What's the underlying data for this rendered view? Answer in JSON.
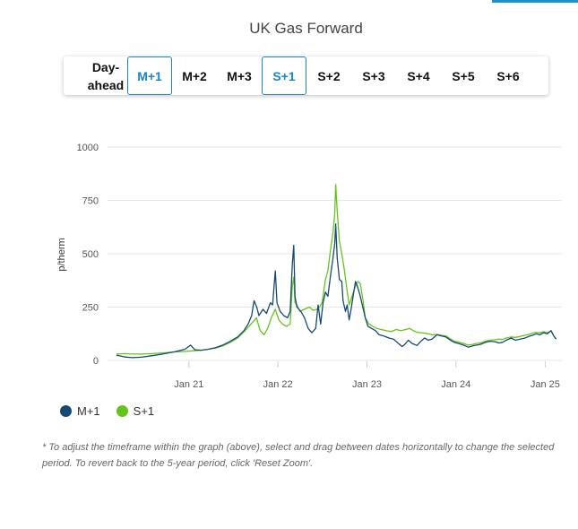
{
  "header": {
    "title": "UK Gas Forward"
  },
  "tabs": [
    {
      "label": "Day-ahead",
      "active": false
    },
    {
      "label": "M+1",
      "active": true
    },
    {
      "label": "M+2",
      "active": false
    },
    {
      "label": "M+3",
      "active": false
    },
    {
      "label": "S+1",
      "active": true
    },
    {
      "label": "S+2",
      "active": false
    },
    {
      "label": "S+3",
      "active": false
    },
    {
      "label": "S+4",
      "active": false
    },
    {
      "label": "S+5",
      "active": false
    },
    {
      "label": "S+6",
      "active": false
    }
  ],
  "chart_data": {
    "type": "line",
    "xlabel": "",
    "ylabel": "p/therm",
    "ylim": [
      0,
      1000
    ],
    "yticks": [
      "0",
      "250",
      "500",
      "750",
      "1000"
    ],
    "xticks": [
      "Jan 21",
      "Jan 22",
      "Jan 23",
      "Jan 24",
      "Jan 25"
    ],
    "grid": true,
    "legend": "bottom-left",
    "series": [
      {
        "name": "M+1",
        "color": "#174a72",
        "points": [
          [
            "2020-03-10",
            25
          ],
          [
            "2020-04-15",
            16
          ],
          [
            "2020-05-15",
            13
          ],
          [
            "2020-06-20",
            15
          ],
          [
            "2020-08-01",
            22
          ],
          [
            "2020-09-15",
            30
          ],
          [
            "2020-11-01",
            40
          ],
          [
            "2020-12-15",
            52
          ],
          [
            "2021-01-08",
            72
          ],
          [
            "2021-01-25",
            50
          ],
          [
            "2021-02-20",
            48
          ],
          [
            "2021-03-20",
            52
          ],
          [
            "2021-04-20",
            60
          ],
          [
            "2021-05-20",
            72
          ],
          [
            "2021-06-20",
            90
          ],
          [
            "2021-07-20",
            110
          ],
          [
            "2021-08-15",
            140
          ],
          [
            "2021-09-01",
            170
          ],
          [
            "2021-09-15",
            210
          ],
          [
            "2021-09-25",
            280
          ],
          [
            "2021-10-06",
            250
          ],
          [
            "2021-10-15",
            210
          ],
          [
            "2021-11-01",
            240
          ],
          [
            "2021-11-15",
            220
          ],
          [
            "2021-12-01",
            270
          ],
          [
            "2021-12-10",
            260
          ],
          [
            "2021-12-21",
            420
          ],
          [
            "2021-12-28",
            270
          ],
          [
            "2022-01-10",
            230
          ],
          [
            "2022-01-25",
            210
          ],
          [
            "2022-02-10",
            200
          ],
          [
            "2022-02-20",
            230
          ],
          [
            "2022-03-01",
            450
          ],
          [
            "2022-03-07",
            540
          ],
          [
            "2022-03-12",
            300
          ],
          [
            "2022-03-20",
            250
          ],
          [
            "2022-04-05",
            230
          ],
          [
            "2022-04-20",
            200
          ],
          [
            "2022-05-05",
            150
          ],
          [
            "2022-05-20",
            130
          ],
          [
            "2022-06-05",
            150
          ],
          [
            "2022-06-15",
            260
          ],
          [
            "2022-06-25",
            170
          ],
          [
            "2022-07-05",
            270
          ],
          [
            "2022-07-15",
            320
          ],
          [
            "2022-07-25",
            300
          ],
          [
            "2022-08-05",
            400
          ],
          [
            "2022-08-15",
            480
          ],
          [
            "2022-08-22",
            550
          ],
          [
            "2022-08-26",
            640
          ],
          [
            "2022-09-01",
            480
          ],
          [
            "2022-09-10",
            380
          ],
          [
            "2022-09-20",
            370
          ],
          [
            "2022-09-25",
            280
          ],
          [
            "2022-10-05",
            230
          ],
          [
            "2022-10-12",
            260
          ],
          [
            "2022-10-20",
            190
          ],
          [
            "2022-10-28",
            240
          ],
          [
            "2022-11-05",
            300
          ],
          [
            "2022-11-15",
            370
          ],
          [
            "2022-11-25",
            340
          ],
          [
            "2022-12-05",
            300
          ],
          [
            "2022-12-15",
            250
          ],
          [
            "2022-12-25",
            200
          ],
          [
            "2023-01-05",
            160
          ],
          [
            "2023-01-20",
            150
          ],
          [
            "2023-02-05",
            140
          ],
          [
            "2023-02-20",
            120
          ],
          [
            "2023-03-10",
            115
          ],
          [
            "2023-04-01",
            105
          ],
          [
            "2023-04-20",
            100
          ],
          [
            "2023-05-10",
            80
          ],
          [
            "2023-05-25",
            65
          ],
          [
            "2023-06-05",
            75
          ],
          [
            "2023-06-20",
            95
          ],
          [
            "2023-07-05",
            80
          ],
          [
            "2023-07-25",
            70
          ],
          [
            "2023-08-10",
            90
          ],
          [
            "2023-08-25",
            105
          ],
          [
            "2023-09-10",
            95
          ],
          [
            "2023-09-25",
            100
          ],
          [
            "2023-10-15",
            120
          ],
          [
            "2023-11-01",
            115
          ],
          [
            "2023-11-20",
            110
          ],
          [
            "2023-12-10",
            95
          ],
          [
            "2023-12-25",
            85
          ],
          [
            "2024-01-15",
            78
          ],
          [
            "2024-02-05",
            70
          ],
          [
            "2024-02-20",
            62
          ],
          [
            "2024-03-10",
            68
          ],
          [
            "2024-03-25",
            72
          ],
          [
            "2024-04-10",
            75
          ],
          [
            "2024-05-01",
            85
          ],
          [
            "2024-05-20",
            90
          ],
          [
            "2024-06-10",
            88
          ],
          [
            "2024-06-25",
            82
          ],
          [
            "2024-07-10",
            85
          ],
          [
            "2024-07-25",
            95
          ],
          [
            "2024-08-15",
            105
          ],
          [
            "2024-09-01",
            95
          ],
          [
            "2024-09-20",
            100
          ],
          [
            "2024-10-10",
            105
          ],
          [
            "2024-10-25",
            112
          ],
          [
            "2024-11-10",
            118
          ],
          [
            "2024-11-25",
            125
          ],
          [
            "2024-12-10",
            120
          ],
          [
            "2024-12-25",
            130
          ],
          [
            "2025-01-10",
            125
          ],
          [
            "2025-01-25",
            140
          ],
          [
            "2025-02-05",
            115
          ],
          [
            "2025-02-15",
            100
          ]
        ]
      },
      {
        "name": "S+1",
        "color": "#66c31a",
        "points": [
          [
            "2020-03-10",
            30
          ],
          [
            "2020-04-15",
            32
          ],
          [
            "2020-05-15",
            30
          ],
          [
            "2020-06-20",
            30
          ],
          [
            "2020-08-01",
            32
          ],
          [
            "2020-09-15",
            35
          ],
          [
            "2020-11-01",
            40
          ],
          [
            "2020-12-15",
            42
          ],
          [
            "2021-01-15",
            45
          ],
          [
            "2021-02-20",
            48
          ],
          [
            "2021-03-20",
            52
          ],
          [
            "2021-04-20",
            58
          ],
          [
            "2021-05-20",
            68
          ],
          [
            "2021-06-20",
            85
          ],
          [
            "2021-07-20",
            105
          ],
          [
            "2021-08-15",
            135
          ],
          [
            "2021-09-01",
            155
          ],
          [
            "2021-09-20",
            180
          ],
          [
            "2021-10-05",
            200
          ],
          [
            "2021-10-20",
            140
          ],
          [
            "2021-11-05",
            120
          ],
          [
            "2021-11-20",
            150
          ],
          [
            "2021-12-05",
            200
          ],
          [
            "2021-12-21",
            240
          ],
          [
            "2022-01-05",
            190
          ],
          [
            "2022-01-20",
            170
          ],
          [
            "2022-02-05",
            160
          ],
          [
            "2022-02-20",
            170
          ],
          [
            "2022-03-01",
            350
          ],
          [
            "2022-03-07",
            390
          ],
          [
            "2022-03-12",
            270
          ],
          [
            "2022-03-20",
            260
          ],
          [
            "2022-04-01",
            230
          ],
          [
            "2022-04-20",
            240
          ],
          [
            "2022-05-10",
            250
          ],
          [
            "2022-05-25",
            235
          ],
          [
            "2022-06-10",
            240
          ],
          [
            "2022-06-20",
            250
          ],
          [
            "2022-07-01",
            270
          ],
          [
            "2022-07-15",
            380
          ],
          [
            "2022-07-25",
            420
          ],
          [
            "2022-08-05",
            520
          ],
          [
            "2022-08-15",
            600
          ],
          [
            "2022-08-22",
            690
          ],
          [
            "2022-08-26",
            825
          ],
          [
            "2022-09-01",
            700
          ],
          [
            "2022-09-10",
            560
          ],
          [
            "2022-09-20",
            500
          ],
          [
            "2022-10-01",
            420
          ],
          [
            "2022-10-10",
            340
          ],
          [
            "2022-10-20",
            260
          ],
          [
            "2022-11-01",
            300
          ],
          [
            "2022-11-15",
            350
          ],
          [
            "2022-11-25",
            370
          ],
          [
            "2022-12-05",
            360
          ],
          [
            "2022-12-15",
            290
          ],
          [
            "2022-12-25",
            200
          ],
          [
            "2023-01-10",
            170
          ],
          [
            "2023-01-25",
            160
          ],
          [
            "2023-02-10",
            150
          ],
          [
            "2023-03-01",
            145
          ],
          [
            "2023-03-20",
            140
          ],
          [
            "2023-04-10",
            135
          ],
          [
            "2023-05-01",
            145
          ],
          [
            "2023-05-20",
            140
          ],
          [
            "2023-06-10",
            145
          ],
          [
            "2023-06-25",
            150
          ],
          [
            "2023-07-10",
            140
          ],
          [
            "2023-07-25",
            132
          ],
          [
            "2023-08-10",
            130
          ],
          [
            "2023-08-25",
            128
          ],
          [
            "2023-09-10",
            125
          ],
          [
            "2023-09-25",
            120
          ],
          [
            "2023-10-15",
            122
          ],
          [
            "2023-11-01",
            118
          ],
          [
            "2023-11-20",
            115
          ],
          [
            "2023-12-10",
            100
          ],
          [
            "2023-12-25",
            90
          ],
          [
            "2024-01-15",
            85
          ],
          [
            "2024-02-05",
            78
          ],
          [
            "2024-02-20",
            72
          ],
          [
            "2024-03-10",
            75
          ],
          [
            "2024-03-25",
            80
          ],
          [
            "2024-04-10",
            82
          ],
          [
            "2024-05-01",
            90
          ],
          [
            "2024-05-20",
            95
          ],
          [
            "2024-06-10",
            97
          ],
          [
            "2024-06-25",
            100
          ],
          [
            "2024-07-10",
            98
          ],
          [
            "2024-07-25",
            105
          ],
          [
            "2024-08-15",
            110
          ],
          [
            "2024-09-01",
            108
          ],
          [
            "2024-09-20",
            112
          ],
          [
            "2024-10-10",
            118
          ],
          [
            "2024-10-25",
            122
          ],
          [
            "2024-11-10",
            128
          ],
          [
            "2024-11-25",
            132
          ],
          [
            "2024-12-10",
            130
          ],
          [
            "2024-12-25",
            135
          ],
          [
            "2025-01-10",
            130
          ],
          [
            "2025-01-25",
            138
          ],
          [
            "2025-02-05",
            115
          ],
          [
            "2025-02-15",
            100
          ]
        ]
      }
    ]
  },
  "footnote": "* To adjust the timeframe within the graph (above), select and drag between dates horizontally to change the selected period. To revert back to the 5-year period, click 'Reset Zoom'."
}
